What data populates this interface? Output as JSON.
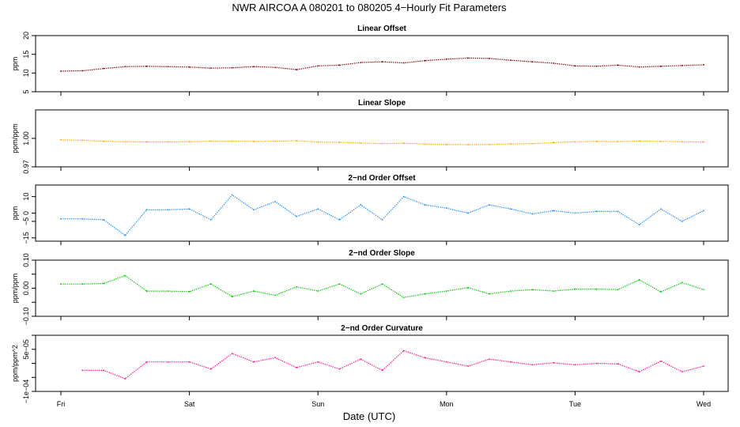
{
  "figure": {
    "title": "NWR   AIRCOA A   080201 to 080205   4−Hourly Fit Parameters",
    "xlabel": "Date (UTC)",
    "x_ticks": [
      "Fri",
      "Sat",
      "Sun",
      "Mon",
      "Tue",
      "Wed"
    ]
  },
  "chart_data": [
    {
      "type": "line",
      "title": "Linear Offset",
      "ylabel": "ppm",
      "color": "#8b0000",
      "xlim": [
        0,
        5
      ],
      "ylim": [
        5,
        20
      ],
      "y_ticks": [
        5,
        10,
        15,
        20
      ],
      "y_tick_labels": [
        "5",
        "10",
        "15",
        "20"
      ],
      "series": [
        {
          "name": "Linear Offset",
          "x": [
            0,
            0.167,
            0.333,
            0.5,
            0.667,
            0.833,
            1,
            1.167,
            1.333,
            1.5,
            1.667,
            1.833,
            2,
            2.167,
            2.333,
            2.5,
            2.667,
            2.833,
            3,
            3.167,
            3.333,
            3.5,
            3.667,
            3.833,
            4,
            4.167,
            4.333,
            4.5,
            4.667,
            4.833,
            5
          ],
          "values": [
            10.5,
            10.6,
            11.2,
            11.7,
            11.8,
            11.7,
            11.6,
            11.3,
            11.4,
            11.7,
            11.5,
            10.9,
            11.9,
            12.1,
            12.8,
            13.0,
            12.7,
            13.3,
            13.7,
            14.0,
            13.9,
            13.4,
            13.0,
            12.6,
            11.9,
            11.8,
            12.1,
            11.6,
            11.8,
            12.0,
            12.2
          ]
        }
      ]
    },
    {
      "type": "line",
      "title": "Linear Slope",
      "ylabel": "ppm/ppm",
      "color": "#ffa500",
      "xlim": [
        0,
        5
      ],
      "ylim": [
        0.97,
        1.03
      ],
      "y_ticks": [
        0.97,
        1.0
      ],
      "y_tick_labels": [
        "0.97",
        "1.00"
      ],
      "series": [
        {
          "name": "Linear Slope",
          "x": [
            0,
            0.167,
            0.333,
            0.5,
            0.667,
            0.833,
            1,
            1.167,
            1.333,
            1.5,
            1.667,
            1.833,
            2,
            2.167,
            2.333,
            2.5,
            2.667,
            2.833,
            3,
            3.167,
            3.333,
            3.5,
            3.667,
            3.833,
            4,
            4.167,
            4.333,
            4.5,
            4.667,
            4.833,
            5
          ],
          "values": [
            0.9985,
            0.998,
            0.997,
            0.9965,
            0.9963,
            0.9963,
            0.9965,
            0.997,
            0.997,
            0.9968,
            0.997,
            0.9975,
            0.9962,
            0.9958,
            0.995,
            0.9945,
            0.9948,
            0.994,
            0.9935,
            0.9933,
            0.9935,
            0.9942,
            0.9945,
            0.9955,
            0.9965,
            0.9968,
            0.9966,
            0.9972,
            0.9968,
            0.9965,
            0.9962
          ]
        }
      ]
    },
    {
      "type": "line",
      "title": "2−nd Order Offset",
      "ylabel": "ppm",
      "color": "#1e90ff",
      "xlim": [
        0,
        5
      ],
      "ylim": [
        -17,
        17
      ],
      "y_ticks": [
        -15,
        -5,
        0,
        10
      ],
      "y_tick_labels": [
        "−15",
        "−5",
        "0",
        "10"
      ],
      "series": [
        {
          "name": "2-nd Order Offset",
          "x": [
            0,
            0.167,
            0.333,
            0.5,
            0.667,
            0.833,
            1,
            1.167,
            1.333,
            1.5,
            1.667,
            1.833,
            2,
            2.167,
            2.333,
            2.5,
            2.667,
            2.833,
            3,
            3.167,
            3.333,
            3.5,
            3.667,
            3.833,
            4,
            4.167,
            4.333,
            4.5,
            4.667,
            4.833,
            5
          ],
          "values": [
            -3.5,
            -3.5,
            -4,
            -13.5,
            2,
            2,
            2.5,
            -4,
            11,
            2,
            7,
            -2,
            2.5,
            -4,
            5,
            -4,
            10,
            5,
            3,
            0,
            5,
            2.5,
            -0.5,
            1.5,
            0,
            1,
            1,
            -7,
            2.5,
            -5,
            1.5
          ]
        }
      ]
    },
    {
      "type": "line",
      "title": "2−nd Order Slope",
      "ylabel": "ppm/ppm",
      "color": "#00cc00",
      "xlim": [
        0,
        5
      ],
      "ylim": [
        -0.1,
        0.1
      ],
      "y_ticks": [
        -0.1,
        -0.05,
        0.0,
        0.05,
        0.1
      ],
      "y_tick_labels": [
        "−0.10",
        "",
        "0.00",
        "",
        "0.10"
      ],
      "series": [
        {
          "name": "2-nd Order Slope",
          "x": [
            0,
            0.167,
            0.333,
            0.5,
            0.667,
            0.833,
            1,
            1.167,
            1.333,
            1.5,
            1.667,
            1.833,
            2,
            2.167,
            2.333,
            2.5,
            2.667,
            2.833,
            3,
            3.167,
            3.333,
            3.5,
            3.667,
            3.833,
            4,
            4.167,
            4.333,
            4.5,
            4.667,
            4.833,
            5
          ],
          "values": [
            0.015,
            0.015,
            0.017,
            0.045,
            -0.01,
            -0.01,
            -0.012,
            0.015,
            -0.03,
            -0.01,
            -0.025,
            0.005,
            -0.01,
            0.015,
            -0.02,
            0.015,
            -0.033,
            -0.02,
            -0.01,
            0.002,
            -0.02,
            -0.01,
            -0.005,
            -0.01,
            -0.003,
            -0.003,
            -0.005,
            0.03,
            -0.013,
            0.02,
            -0.005
          ]
        }
      ]
    },
    {
      "type": "line",
      "title": "2−nd Order Curvature",
      "ylabel": "ppm/ppm^2",
      "color": "#ff1493",
      "xlim": [
        0,
        5
      ],
      "ylim": [
        -0.0001,
        0.0001
      ],
      "y_ticks": [
        -0.0001,
        -5e-05,
        0,
        5e-05,
        0.0001
      ],
      "y_tick_labels": [
        "−1e−04",
        "",
        "",
        "5e−05",
        ""
      ],
      "series": [
        {
          "name": "2-nd Order Curvature",
          "x": [
            0.167,
            0.333,
            0.5,
            0.667,
            0.833,
            1,
            1.167,
            1.333,
            1.5,
            1.667,
            1.833,
            2,
            2.167,
            2.333,
            2.5,
            2.667,
            2.833,
            3,
            3.167,
            3.333,
            3.5,
            3.667,
            3.833,
            4,
            4.167,
            4.333,
            4.5,
            4.667,
            4.833,
            5
          ],
          "values": [
            -2.5e-05,
            -2.5e-05,
            -5.5e-05,
            5e-06,
            5e-06,
            5e-06,
            -2e-05,
            3.5e-05,
            5e-06,
            2e-05,
            -1.5e-05,
            5e-06,
            -2e-05,
            1.5e-05,
            -2.5e-05,
            4.5e-05,
            2e-05,
            5e-06,
            -1e-05,
            1.5e-05,
            5e-06,
            -5e-06,
            2e-06,
            -5e-06,
            0,
            -2e-06,
            -3e-05,
            8e-06,
            -3e-05,
            -1e-05
          ]
        }
      ]
    }
  ]
}
